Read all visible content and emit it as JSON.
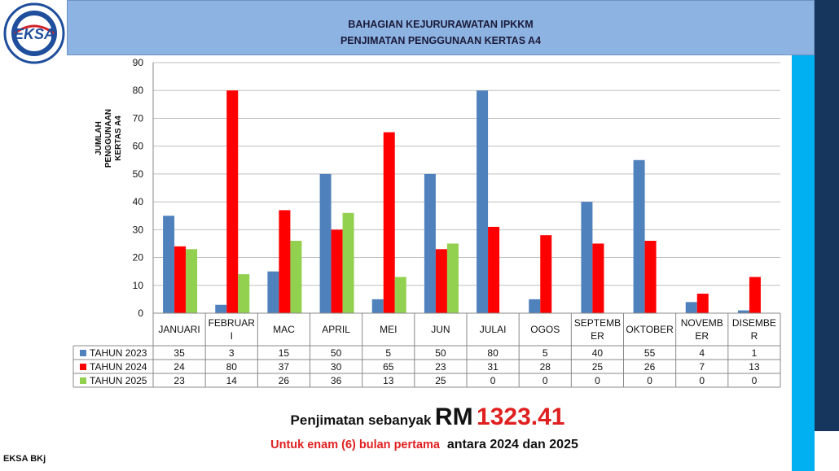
{
  "header": {
    "line1": "BAHAGIAN KEJURURAWATAN IPKKM",
    "line2": "PENJIMATAN PENGGUNAAN KERTAS A4"
  },
  "logo": {
    "text": "EKSA",
    "icon": "eksa-logo-icon",
    "ring_color": "#1f4e9c",
    "accent": "#d42027"
  },
  "chart_data": {
    "type": "bar",
    "ylabel": [
      "JUMLAH",
      "PENGGUNAAN",
      "KERTAS A4"
    ],
    "ylim": [
      0,
      90
    ],
    "yticks": [
      0,
      10,
      20,
      30,
      40,
      50,
      60,
      70,
      80,
      90
    ],
    "grid": true,
    "categories": [
      [
        "JANUARI"
      ],
      [
        "FEBRUAR",
        "I"
      ],
      [
        "MAC"
      ],
      [
        "APRIL"
      ],
      [
        "MEI"
      ],
      [
        "JUN"
      ],
      [
        "JULAI"
      ],
      [
        "OGOS"
      ],
      [
        "SEPTEMB",
        "ER"
      ],
      [
        "OKTOBER"
      ],
      [
        "NOVEMB",
        "ER"
      ],
      [
        "DISEMBE",
        "R"
      ]
    ],
    "series": [
      {
        "name": "TAHUN 2023",
        "color": "#4f81bd",
        "values": [
          35,
          3,
          15,
          50,
          5,
          50,
          80,
          5,
          40,
          55,
          4,
          1
        ]
      },
      {
        "name": "TAHUN 2024",
        "color": "#ff0000",
        "values": [
          24,
          80,
          37,
          30,
          65,
          23,
          31,
          28,
          25,
          26,
          7,
          13
        ]
      },
      {
        "name": "TAHUN 2025",
        "color": "#92d050",
        "values": [
          23,
          14,
          26,
          36,
          13,
          25,
          0,
          0,
          0,
          0,
          0,
          0
        ]
      }
    ],
    "legend": "data-table-left"
  },
  "summary": {
    "label": "Penjimatan sebanyak",
    "currency": "RM",
    "amount": "1323.41",
    "note_red": "Untuk enam (6) bulan pertama",
    "note_black": "antara 2024 dan 2025"
  },
  "footer": {
    "text": "EKSA BKj"
  }
}
